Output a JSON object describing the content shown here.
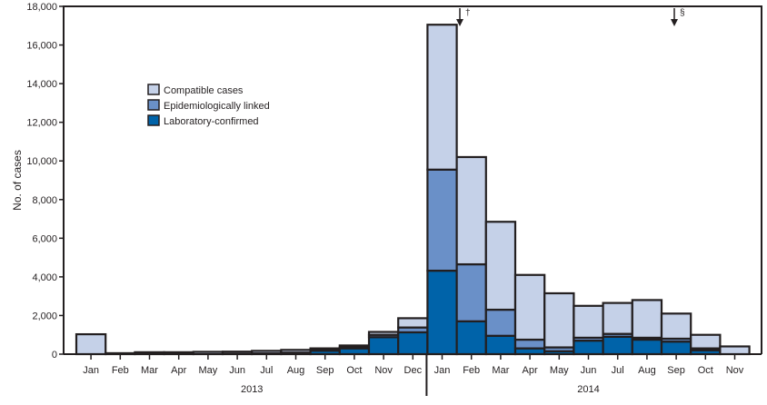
{
  "chart_data": {
    "type": "bar",
    "stacked": true,
    "ylabel": "No. of cases",
    "ylim": [
      0,
      18000
    ],
    "yticks": [
      0,
      2000,
      4000,
      6000,
      8000,
      10000,
      12000,
      14000,
      16000,
      18000
    ],
    "ytick_labels": [
      "0",
      "2,000",
      "4,000",
      "6,000",
      "8,000",
      "10,000",
      "12,000",
      "14,000",
      "16,000",
      "18,000"
    ],
    "categories": [
      "Jan",
      "Feb",
      "Mar",
      "Apr",
      "May",
      "Jun",
      "Jul",
      "Aug",
      "Sep",
      "Oct",
      "Nov",
      "Dec",
      "Jan",
      "Feb",
      "Mar",
      "Apr",
      "May",
      "Jun",
      "Jul",
      "Aug",
      "Sep",
      "Oct",
      "Nov"
    ],
    "years": [
      {
        "label": "2013",
        "start": 0,
        "end": 11
      },
      {
        "label": "2014",
        "start": 12,
        "end": 22
      }
    ],
    "legend_position": "upper-left",
    "grid": false,
    "series": [
      {
        "name": "Laboratory-confirmed",
        "color": "#0063a9",
        "values": [
          0,
          0,
          0,
          0,
          0,
          20,
          40,
          80,
          180,
          300,
          880,
          1130,
          4320,
          1700,
          950,
          300,
          150,
          700,
          900,
          750,
          650,
          200,
          0
        ]
      },
      {
        "name": "Epidemiologically linked",
        "color": "#6a90c8",
        "values": [
          0,
          0,
          0,
          0,
          0,
          0,
          0,
          0,
          20,
          50,
          120,
          250,
          5230,
          2950,
          1350,
          450,
          200,
          150,
          150,
          100,
          150,
          100,
          0
        ]
      },
      {
        "name": "Compatible cases",
        "color": "#c5d1e8",
        "values": [
          1030,
          50,
          100,
          100,
          120,
          110,
          130,
          140,
          100,
          100,
          150,
          480,
          7500,
          5550,
          4550,
          3350,
          2800,
          1650,
          1600,
          1950,
          1300,
          700,
          400
        ]
      }
    ],
    "annotations": [
      {
        "symbol": "†",
        "between": [
          "Jan 2014",
          "Feb 2014"
        ]
      },
      {
        "symbol": "§",
        "between": [
          "Aug 2014",
          "Sep 2014"
        ]
      }
    ]
  }
}
